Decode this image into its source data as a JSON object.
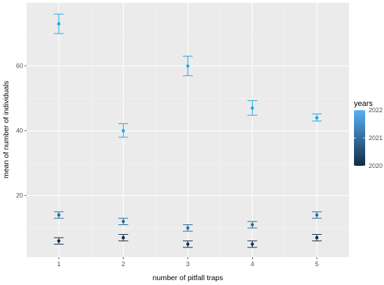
{
  "chart_data": {
    "type": "scatter",
    "xlabel": "number of pitfall traps",
    "ylabel": "mean of number of individuals",
    "x_ticks": [
      "1",
      "2",
      "3",
      "4",
      "5"
    ],
    "y_ticks": [
      "20",
      "40",
      "60"
    ],
    "xlim": [
      0.5,
      5.5
    ],
    "ylim": [
      1,
      79.5
    ],
    "grid": true,
    "legend": {
      "title": "years",
      "placement": "right",
      "labels": [
        "2022",
        "2021",
        "2020"
      ],
      "range": [
        2020,
        2022
      ]
    },
    "colors": {
      "low": "#132b43",
      "high": "#56b1f7",
      "panel": "#ebebeb",
      "grid": "#ffffff"
    },
    "series": [
      {
        "year": 2022,
        "color": "#1ba8e8",
        "x": [
          1,
          2,
          3,
          4,
          5
        ],
        "mean": [
          73,
          40,
          60,
          47,
          44
        ],
        "lower": [
          70,
          38,
          57,
          44.8,
          43
        ],
        "upper": [
          76,
          42.2,
          63,
          49.3,
          45.2
        ]
      },
      {
        "year": 2021,
        "color": "#1e6f9e",
        "x": [
          1,
          2,
          3,
          4,
          5
        ],
        "mean": [
          14,
          12,
          10,
          11,
          14
        ],
        "lower": [
          13,
          11,
          9,
          10,
          13
        ],
        "upper": [
          15,
          13,
          11,
          12,
          15
        ]
      },
      {
        "year": 2020,
        "color": "#132b43",
        "x": [
          1,
          2,
          3,
          4,
          5
        ],
        "mean": [
          6,
          7,
          5,
          5,
          7
        ],
        "lower": [
          5,
          6,
          4,
          4,
          6
        ],
        "upper": [
          7,
          8,
          6,
          6,
          8
        ]
      }
    ]
  }
}
